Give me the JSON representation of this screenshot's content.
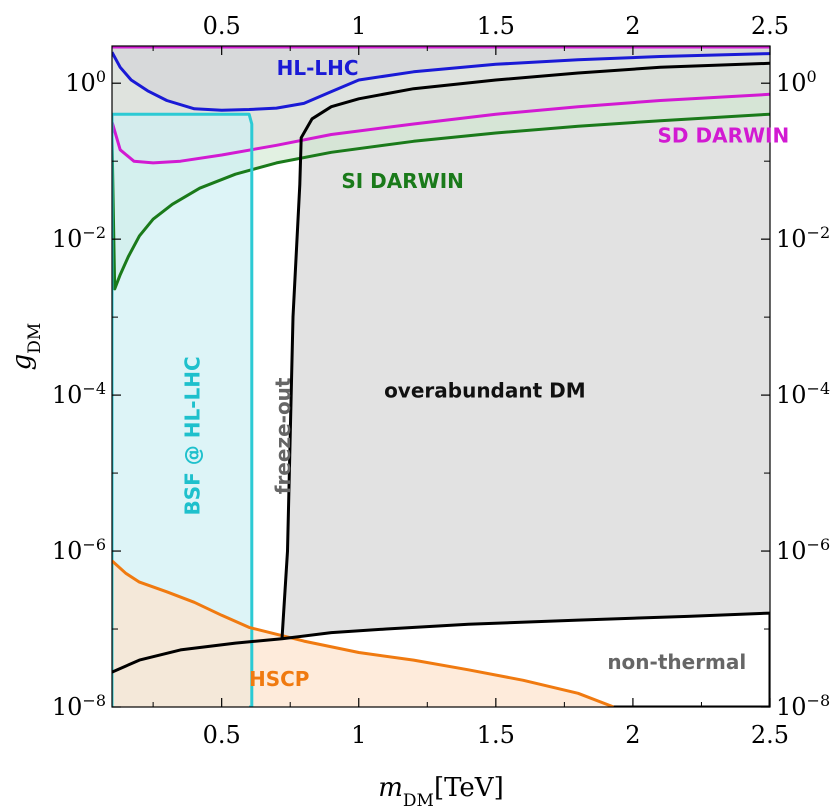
{
  "chart_data": {
    "type": "area",
    "xlabel": "m_DM[TeV]",
    "xlabel_main": "m",
    "xlabel_sub": "DM",
    "xlabel_unit": "[TeV]",
    "ylabel": "g_DM",
    "ylabel_main": "g",
    "ylabel_sub": "DM",
    "xlim": [
      0.1,
      2.5
    ],
    "ylim": [
      1e-08,
      3
    ],
    "yscale": "log",
    "grid": false,
    "x_ticks": [
      {
        "value": 0.5,
        "label": "0.5"
      },
      {
        "value": 1,
        "label": "1"
      },
      {
        "value": 1.5,
        "label": "1.5"
      },
      {
        "value": 2,
        "label": "2"
      },
      {
        "value": 2.5,
        "label": "2.5"
      }
    ],
    "y_ticks": [
      {
        "value": 1,
        "base": "10",
        "exp": "0"
      },
      {
        "value": 0.01,
        "base": "10",
        "exp": "−2"
      },
      {
        "value": 0.0001,
        "base": "10",
        "exp": "−4"
      },
      {
        "value": 1e-06,
        "base": "10",
        "exp": "−6"
      },
      {
        "value": 1e-08,
        "base": "10",
        "exp": "−8"
      }
    ],
    "regions": [
      {
        "key": "overabundant",
        "label": "overabundant DM",
        "label_at": [
          1.46,
          0.00011
        ],
        "label_color": "#111111",
        "fill": "#e2e2e2",
        "stroke": "none",
        "x": [
          0.79,
          0.83,
          0.9,
          1.0,
          1.2,
          1.5,
          1.8,
          2.1,
          2.5,
          2.5,
          2.2,
          1.8,
          1.4,
          1.1,
          0.9,
          0.72,
          0.74,
          0.76,
          0.785
        ],
        "y": [
          0.2,
          0.35,
          0.5,
          0.63,
          0.85,
          1.1,
          1.35,
          1.6,
          1.8,
          1.6e-07,
          1.45e-07,
          1.3e-07,
          1.15e-07,
          1e-07,
          9e-08,
          7.5e-08,
          1e-06,
          0.001,
          0.05
        ]
      },
      {
        "key": "hl_lhc",
        "label": "HL-LHC",
        "label_at": [
          0.85,
          1.5
        ],
        "label_color": "#1a1ad6",
        "fill": "#b8a8e0",
        "fill_opacity": 0.75,
        "stroke": "#1a1ad6",
        "x": [
          0.1,
          0.13,
          0.17,
          0.23,
          0.3,
          0.4,
          0.5,
          0.6,
          0.7,
          0.8,
          0.9,
          1.0,
          1.2,
          1.5,
          1.8,
          2.1,
          2.5
        ],
        "y": [
          2.5,
          1.6,
          1.1,
          0.8,
          0.6,
          0.47,
          0.45,
          0.46,
          0.48,
          0.55,
          0.78,
          1.1,
          1.4,
          1.75,
          2.0,
          2.2,
          2.4
        ]
      },
      {
        "key": "sd_darwin",
        "label": "SD DARWIN",
        "label_at": [
          2.33,
          0.205
        ],
        "label_color": "#d21ad2",
        "fill": "#f3c6ef",
        "fill_opacity": 0.6,
        "stroke": "#d21ad2",
        "x": [
          0.1,
          0.13,
          0.18,
          0.25,
          0.35,
          0.5,
          0.7,
          0.9,
          1.2,
          1.5,
          1.8,
          2.1,
          2.5
        ],
        "y": [
          0.32,
          0.14,
          0.1,
          0.095,
          0.1,
          0.12,
          0.16,
          0.22,
          0.3,
          0.4,
          0.5,
          0.6,
          0.72
        ]
      },
      {
        "key": "si_darwin",
        "label": "SI DARWIN",
        "label_at": [
          1.16,
          0.053
        ],
        "label_color": "#1a7a1a",
        "fill": "#cfe8cf",
        "fill_opacity": 0.6,
        "stroke": "#1a7a1a",
        "x": [
          0.1,
          0.11,
          0.13,
          0.16,
          0.2,
          0.25,
          0.32,
          0.42,
          0.55,
          0.7,
          0.9,
          1.2,
          1.5,
          1.8,
          2.1,
          2.5
        ],
        "y": [
          0.2,
          0.0023,
          0.0035,
          0.006,
          0.011,
          0.018,
          0.028,
          0.045,
          0.068,
          0.095,
          0.13,
          0.18,
          0.23,
          0.28,
          0.33,
          0.4
        ]
      },
      {
        "key": "bsf",
        "label": "BSF @ HL-LHC",
        "label_at": [
          0.4,
          3e-05
        ],
        "label_color": "#1ec0cc",
        "fill": "#cfeff4",
        "fill_opacity": 0.7,
        "stroke": "#2ccad4",
        "x": [
          0.1,
          0.1,
          0.6,
          0.61,
          0.61,
          0.6
        ],
        "y": [
          1e-08,
          0.4,
          0.4,
          0.3,
          1e-08,
          1e-08
        ]
      },
      {
        "key": "hscp",
        "label": "HSCP",
        "label_at": [
          0.71,
          2.2e-08
        ],
        "label_color": "#f07a10",
        "fill": "#fde2cc",
        "fill_opacity": 0.7,
        "stroke": "#f07a10",
        "x": [
          0.1,
          0.15,
          0.2,
          0.3,
          0.4,
          0.5,
          0.6,
          0.8,
          1.0,
          1.2,
          1.4,
          1.6,
          1.8,
          1.93
        ],
        "y": [
          7.5e-07,
          5.2e-07,
          4e-07,
          3e-07,
          2.2e-07,
          1.5e-07,
          1.05e-07,
          7e-08,
          5e-08,
          4e-08,
          3e-08,
          2.2e-08,
          1.5e-08,
          1e-08
        ]
      }
    ],
    "curves": [
      {
        "key": "freezeout",
        "label": "freeze-out",
        "label_at": [
          0.73,
          3e-05
        ],
        "label_color": "#666666",
        "stroke": "#000000",
        "x": [
          0.72,
          0.74,
          0.76,
          0.785,
          0.79,
          0.83,
          0.9,
          1.0,
          1.2,
          1.5,
          1.8,
          2.1,
          2.5
        ],
        "y": [
          7.5e-08,
          1e-06,
          0.001,
          0.05,
          0.2,
          0.35,
          0.5,
          0.63,
          0.85,
          1.1,
          1.35,
          1.6,
          1.8
        ]
      },
      {
        "key": "nonthermal",
        "label": "non-thermal",
        "label_at": [
          2.16,
          3.6e-08
        ],
        "label_color": "#666666",
        "stroke": "#000000",
        "x": [
          0.1,
          0.2,
          0.35,
          0.55,
          0.72,
          0.9,
          1.1,
          1.4,
          1.8,
          2.2,
          2.5
        ],
        "y": [
          2.8e-08,
          4e-08,
          5.4e-08,
          6.6e-08,
          7.5e-08,
          9e-08,
          1e-07,
          1.15e-07,
          1.3e-07,
          1.45e-07,
          1.6e-07
        ]
      },
      {
        "key": "boundary_right",
        "stroke": "#000000",
        "x": [
          1.93,
          2.5,
          2.5
        ],
        "y": [
          1e-08,
          1e-08,
          1.6e-07
        ]
      }
    ]
  }
}
